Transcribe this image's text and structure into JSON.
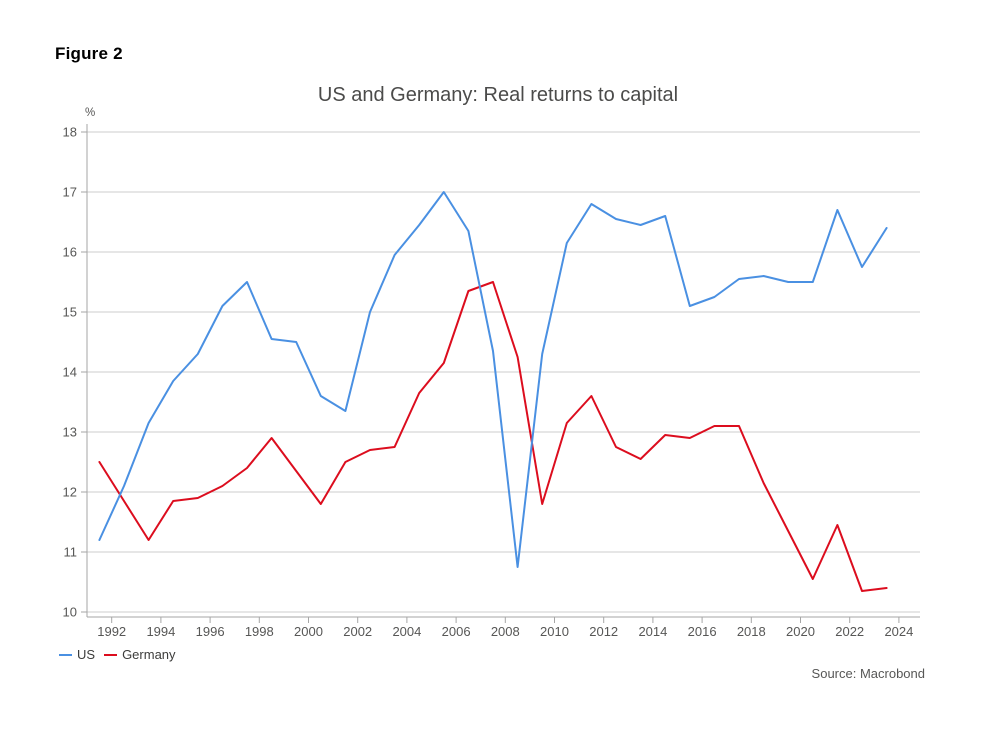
{
  "figure_label": "Figure 2",
  "footer": {
    "source": "Source: Macrobond"
  },
  "chart_data": {
    "type": "line",
    "title": "US and Germany: Real returns to capital",
    "y_unit_label": "%",
    "ylim": [
      10,
      18
    ],
    "y_ticks": [
      10,
      11,
      12,
      13,
      14,
      15,
      16,
      17,
      18
    ],
    "x_ticks": [
      1992,
      1994,
      1996,
      1998,
      2000,
      2002,
      2004,
      2006,
      2008,
      2010,
      2012,
      2014,
      2016,
      2018,
      2020,
      2022,
      2024
    ],
    "grid": "horizontal",
    "legend_position": "bottom-left",
    "x": [
      1991,
      1992,
      1993,
      1994,
      1995,
      1996,
      1997,
      1998,
      1999,
      2000,
      2001,
      2002,
      2003,
      2004,
      2005,
      2006,
      2007,
      2008,
      2009,
      2010,
      2011,
      2012,
      2013,
      2014,
      2015,
      2016,
      2017,
      2018,
      2019,
      2020,
      2021,
      2022,
      2023
    ],
    "series": [
      {
        "name": "US",
        "color": "#4a90e2",
        "values": [
          11.2,
          12.1,
          13.15,
          13.85,
          14.3,
          15.1,
          15.5,
          14.55,
          14.5,
          13.6,
          13.35,
          15.0,
          15.95,
          16.45,
          17.0,
          16.35,
          14.35,
          10.75,
          14.3,
          16.15,
          16.8,
          16.55,
          16.45,
          16.6,
          15.1,
          15.25,
          15.55,
          15.6,
          15.5,
          15.5,
          16.7,
          15.75,
          16.4
        ]
      },
      {
        "name": "Germany",
        "color": "#dc0d1e",
        "values": [
          12.5,
          11.85,
          11.2,
          11.85,
          11.9,
          12.1,
          12.4,
          12.9,
          12.35,
          11.8,
          12.5,
          12.7,
          12.75,
          13.65,
          14.15,
          15.35,
          15.5,
          14.25,
          11.8,
          13.15,
          13.6,
          12.75,
          12.55,
          12.95,
          12.9,
          13.1,
          13.1,
          12.15,
          11.35,
          10.55,
          11.45,
          10.35,
          10.4
        ]
      }
    ],
    "colors": {
      "grid": "#cccccc",
      "axis": "#a6a6a6",
      "tick_label": "#575756",
      "title": "#4b4b4a"
    }
  }
}
